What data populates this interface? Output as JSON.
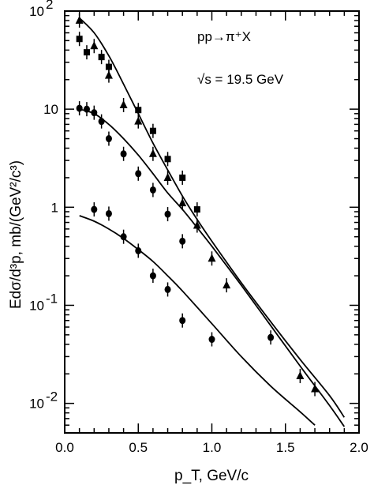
{
  "chart_data": {
    "type": "scatter",
    "title": "",
    "xlabel": "p_T, GeV/c",
    "ylabel": "Edσ/d³p, mb/(GeV²/c³)",
    "xlim": [
      0.0,
      2.0
    ],
    "ylim": [
      0.005,
      100
    ],
    "yscale": "log",
    "grid": false,
    "xticks": [
      "0.0",
      "0.5",
      "1.0",
      "1.5",
      "2.0"
    ],
    "yticks": [
      {
        "value": 100,
        "base": "10",
        "exp": "2"
      },
      {
        "value": 10,
        "base": "10",
        "exp": ""
      },
      {
        "value": 1,
        "base": "1",
        "exp": ""
      },
      {
        "value": 0.1,
        "base": "10",
        "exp": "-1"
      },
      {
        "value": 0.01,
        "base": "10",
        "exp": "-2"
      }
    ],
    "annotations": [
      "pp→π⁺X",
      "√s = 19.5 GeV"
    ],
    "series": [
      {
        "marker": "square",
        "points": [
          {
            "x": 0.1,
            "y": 52
          },
          {
            "x": 0.15,
            "y": 38
          },
          {
            "x": 0.25,
            "y": 34
          },
          {
            "x": 0.3,
            "y": 27
          },
          {
            "x": 0.5,
            "y": 9.8
          },
          {
            "x": 0.6,
            "y": 6
          },
          {
            "x": 0.7,
            "y": 3.1
          },
          {
            "x": 0.8,
            "y": 2
          },
          {
            "x": 0.9,
            "y": 0.95
          }
        ]
      },
      {
        "marker": "triangle",
        "points": [
          {
            "x": 0.1,
            "y": 80
          },
          {
            "x": 0.2,
            "y": 44
          },
          {
            "x": 0.3,
            "y": 22
          },
          {
            "x": 0.4,
            "y": 11
          },
          {
            "x": 0.5,
            "y": 7.5
          },
          {
            "x": 0.6,
            "y": 3.5
          },
          {
            "x": 0.7,
            "y": 2.0
          },
          {
            "x": 0.8,
            "y": 1.1
          },
          {
            "x": 0.9,
            "y": 0.65
          },
          {
            "x": 1.0,
            "y": 0.3
          },
          {
            "x": 1.1,
            "y": 0.16
          },
          {
            "x": 1.6,
            "y": 0.019
          },
          {
            "x": 1.7,
            "y": 0.014
          }
        ]
      },
      {
        "marker": "circle",
        "points": [
          {
            "x": 0.1,
            "y": 10.2
          },
          {
            "x": 0.15,
            "y": 10
          },
          {
            "x": 0.2,
            "y": 9.2
          },
          {
            "x": 0.25,
            "y": 7.5
          },
          {
            "x": 0.3,
            "y": 5
          },
          {
            "x": 0.4,
            "y": 3.5
          },
          {
            "x": 0.5,
            "y": 2.2
          },
          {
            "x": 0.6,
            "y": 1.5
          },
          {
            "x": 0.7,
            "y": 0.85
          },
          {
            "x": 0.8,
            "y": 0.45
          },
          {
            "x": 0.2,
            "y": 0.95
          },
          {
            "x": 0.3,
            "y": 0.86
          },
          {
            "x": 0.4,
            "y": 0.5
          },
          {
            "x": 0.5,
            "y": 0.36
          },
          {
            "x": 0.6,
            "y": 0.2
          },
          {
            "x": 0.7,
            "y": 0.145
          },
          {
            "x": 0.8,
            "y": 0.07
          },
          {
            "x": 1.0,
            "y": 0.045
          },
          {
            "x": 1.4,
            "y": 0.047
          }
        ]
      }
    ],
    "curves": [
      {
        "points": [
          [
            0.1,
            85
          ],
          [
            0.2,
            60
          ],
          [
            0.3,
            35
          ],
          [
            0.4,
            18
          ],
          [
            0.5,
            9
          ],
          [
            0.6,
            4.5
          ],
          [
            0.7,
            2.4
          ],
          [
            0.8,
            1.3
          ],
          [
            0.9,
            0.75
          ],
          [
            1.0,
            0.45
          ],
          [
            1.2,
            0.17
          ],
          [
            1.4,
            0.068
          ],
          [
            1.6,
            0.028
          ],
          [
            1.8,
            0.012
          ],
          [
            1.9,
            0.0072
          ]
        ]
      },
      {
        "points": [
          [
            0.1,
            10
          ],
          [
            0.2,
            9
          ],
          [
            0.3,
            7
          ],
          [
            0.4,
            5
          ],
          [
            0.5,
            3.4
          ],
          [
            0.6,
            2.2
          ],
          [
            0.7,
            1.4
          ],
          [
            0.8,
            0.95
          ],
          [
            0.9,
            0.62
          ],
          [
            1.0,
            0.4
          ],
          [
            1.2,
            0.16
          ],
          [
            1.4,
            0.062
          ],
          [
            1.6,
            0.024
          ],
          [
            1.8,
            0.0095
          ],
          [
            1.9,
            0.0058
          ]
        ]
      },
      {
        "points": [
          [
            0.1,
            0.82
          ],
          [
            0.2,
            0.72
          ],
          [
            0.3,
            0.6
          ],
          [
            0.4,
            0.48
          ],
          [
            0.5,
            0.37
          ],
          [
            0.6,
            0.28
          ],
          [
            0.7,
            0.2
          ],
          [
            0.8,
            0.14
          ],
          [
            1.0,
            0.065
          ],
          [
            1.2,
            0.03
          ],
          [
            1.4,
            0.015
          ],
          [
            1.6,
            0.0082
          ],
          [
            1.7,
            0.006
          ]
        ]
      }
    ]
  }
}
